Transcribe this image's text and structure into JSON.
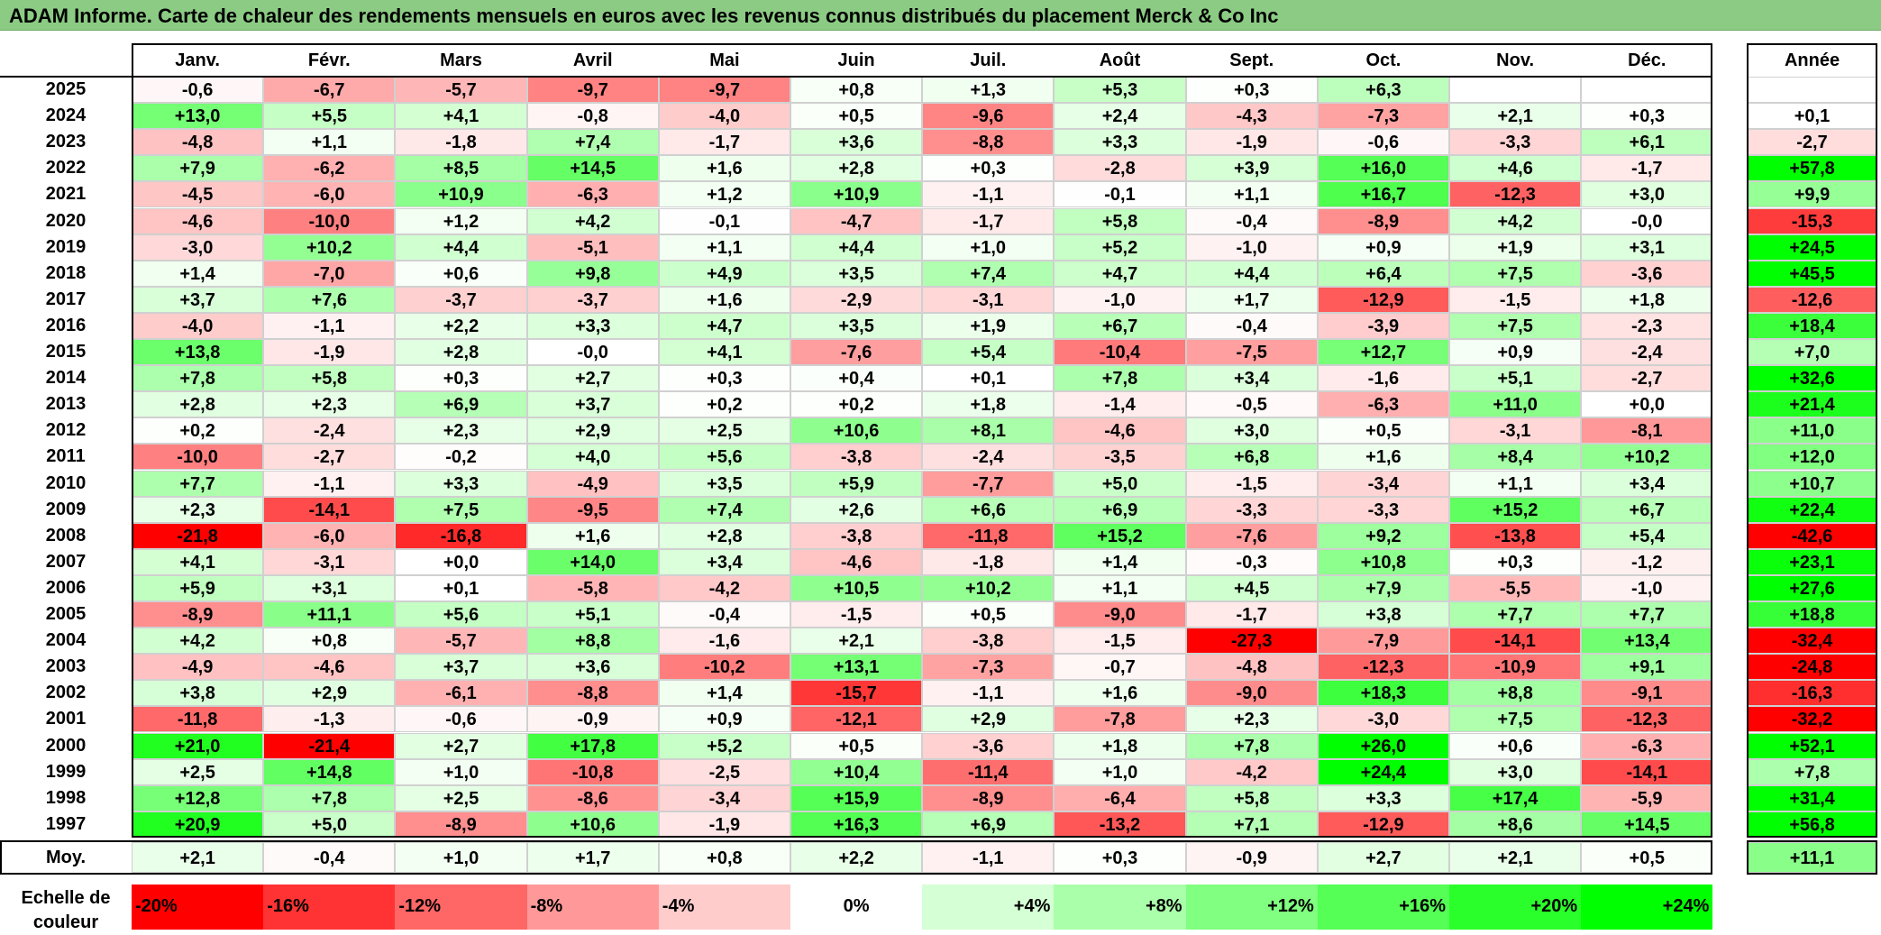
{
  "title": "ADAM Informe. Carte de chaleur des rendements mensuels en euros avec les revenus connus distribués du placement Merck & Co Inc",
  "chart_data": {
    "type": "heatmap",
    "months": [
      "Janv.",
      "Févr.",
      "Mars",
      "Avril",
      "Mai",
      "Juin",
      "Juil.",
      "Août",
      "Sept.",
      "Oct.",
      "Nov.",
      "Déc."
    ],
    "year_header": "Année",
    "rows": [
      {
        "year": "2025",
        "values": [
          "-0,6",
          "-6,7",
          "-5,7",
          "-9,7",
          "-9,7",
          "+0,8",
          "+1,3",
          "+5,3",
          "+0,3",
          "+6,3",
          "",
          ""
        ],
        "annual": ""
      },
      {
        "year": "2024",
        "values": [
          "+13,0",
          "+5,5",
          "+4,1",
          "-0,8",
          "-4,0",
          "+0,5",
          "-9,6",
          "+2,4",
          "-4,3",
          "-7,3",
          "+2,1",
          "+0,3"
        ],
        "annual": "+0,1"
      },
      {
        "year": "2023",
        "values": [
          "-4,8",
          "+1,1",
          "-1,8",
          "+7,4",
          "-1,7",
          "+3,6",
          "-8,8",
          "+3,3",
          "-1,9",
          "-0,6",
          "-3,3",
          "+6,1"
        ],
        "annual": "-2,7"
      },
      {
        "year": "2022",
        "values": [
          "+7,9",
          "-6,2",
          "+8,5",
          "+14,5",
          "+1,6",
          "+2,8",
          "+0,3",
          "-2,8",
          "+3,9",
          "+16,0",
          "+4,6",
          "-1,7"
        ],
        "annual": "+57,8"
      },
      {
        "year": "2021",
        "values": [
          "-4,5",
          "-6,0",
          "+10,9",
          "-6,3",
          "+1,2",
          "+10,9",
          "-1,1",
          "-0,1",
          "+1,1",
          "+16,7",
          "-12,3",
          "+3,0"
        ],
        "annual": "+9,9"
      },
      {
        "year": "2020",
        "values": [
          "-4,6",
          "-10,0",
          "+1,2",
          "+4,2",
          "-0,1",
          "-4,7",
          "-1,7",
          "+5,8",
          "-0,4",
          "-8,9",
          "+4,2",
          "-0,0"
        ],
        "annual": "-15,3"
      },
      {
        "year": "2019",
        "values": [
          "-3,0",
          "+10,2",
          "+4,4",
          "-5,1",
          "+1,1",
          "+4,4",
          "+1,0",
          "+5,2",
          "-1,0",
          "+0,9",
          "+1,9",
          "+3,1"
        ],
        "annual": "+24,5"
      },
      {
        "year": "2018",
        "values": [
          "+1,4",
          "-7,0",
          "+0,6",
          "+9,8",
          "+4,9",
          "+3,5",
          "+7,4",
          "+4,7",
          "+4,4",
          "+6,4",
          "+7,5",
          "-3,6"
        ],
        "annual": "+45,5"
      },
      {
        "year": "2017",
        "values": [
          "+3,7",
          "+7,6",
          "-3,7",
          "-3,7",
          "+1,6",
          "-2,9",
          "-3,1",
          "-1,0",
          "+1,7",
          "-12,9",
          "-1,5",
          "+1,8"
        ],
        "annual": "-12,6"
      },
      {
        "year": "2016",
        "values": [
          "-4,0",
          "-1,1",
          "+2,2",
          "+3,3",
          "+4,7",
          "+3,5",
          "+1,9",
          "+6,7",
          "-0,4",
          "-3,9",
          "+7,5",
          "-2,3"
        ],
        "annual": "+18,4"
      },
      {
        "year": "2015",
        "values": [
          "+13,8",
          "-1,9",
          "+2,8",
          "-0,0",
          "+4,1",
          "-7,6",
          "+5,4",
          "-10,4",
          "-7,5",
          "+12,7",
          "+0,9",
          "-2,4"
        ],
        "annual": "+7,0"
      },
      {
        "year": "2014",
        "values": [
          "+7,8",
          "+5,8",
          "+0,3",
          "+2,7",
          "+0,3",
          "+0,4",
          "+0,1",
          "+7,8",
          "+3,4",
          "-1,6",
          "+5,1",
          "-2,7"
        ],
        "annual": "+32,6"
      },
      {
        "year": "2013",
        "values": [
          "+2,8",
          "+2,3",
          "+6,9",
          "+3,7",
          "+0,2",
          "+0,2",
          "+1,8",
          "-1,4",
          "-0,5",
          "-6,3",
          "+11,0",
          "+0,0"
        ],
        "annual": "+21,4"
      },
      {
        "year": "2012",
        "values": [
          "+0,2",
          "-2,4",
          "+2,3",
          "+2,9",
          "+2,5",
          "+10,6",
          "+8,1",
          "-4,6",
          "+3,0",
          "+0,5",
          "-3,1",
          "-8,1"
        ],
        "annual": "+11,0"
      },
      {
        "year": "2011",
        "values": [
          "-10,0",
          "-2,7",
          "-0,2",
          "+4,0",
          "+5,6",
          "-3,8",
          "-2,4",
          "-3,5",
          "+6,8",
          "+1,6",
          "+8,4",
          "+10,2"
        ],
        "annual": "+12,0"
      },
      {
        "year": "2010",
        "values": [
          "+7,7",
          "-1,1",
          "+3,3",
          "-4,9",
          "+3,5",
          "+5,9",
          "-7,7",
          "+5,0",
          "-1,5",
          "-3,4",
          "+1,1",
          "+3,4"
        ],
        "annual": "+10,7"
      },
      {
        "year": "2009",
        "values": [
          "+2,3",
          "-14,1",
          "+7,5",
          "-9,5",
          "+7,4",
          "+2,6",
          "+6,6",
          "+6,9",
          "-3,3",
          "-3,3",
          "+15,2",
          "+6,7"
        ],
        "annual": "+22,4"
      },
      {
        "year": "2008",
        "values": [
          "-21,8",
          "-6,0",
          "-16,8",
          "+1,6",
          "+2,8",
          "-3,8",
          "-11,8",
          "+15,2",
          "-7,6",
          "+9,2",
          "-13,8",
          "+5,4"
        ],
        "annual": "-42,6"
      },
      {
        "year": "2007",
        "values": [
          "+4,1",
          "-3,1",
          "+0,0",
          "+14,0",
          "+3,4",
          "-4,6",
          "-1,8",
          "+1,4",
          "-0,3",
          "+10,8",
          "+0,3",
          "-1,2"
        ],
        "annual": "+23,1"
      },
      {
        "year": "2006",
        "values": [
          "+5,9",
          "+3,1",
          "+0,1",
          "-5,8",
          "-4,2",
          "+10,5",
          "+10,2",
          "+1,1",
          "+4,5",
          "+7,9",
          "-5,5",
          "-1,0"
        ],
        "annual": "+27,6"
      },
      {
        "year": "2005",
        "values": [
          "-8,9",
          "+11,1",
          "+5,6",
          "+5,1",
          "-0,4",
          "-1,5",
          "+0,5",
          "-9,0",
          "-1,7",
          "+3,8",
          "+7,7",
          "+7,7"
        ],
        "annual": "+18,8"
      },
      {
        "year": "2004",
        "values": [
          "+4,2",
          "+0,8",
          "-5,7",
          "+8,8",
          "-1,6",
          "+2,1",
          "-3,8",
          "-1,5",
          "-27,3",
          "-7,9",
          "-14,1",
          "+13,4"
        ],
        "annual": "-32,4"
      },
      {
        "year": "2003",
        "values": [
          "-4,9",
          "-4,6",
          "+3,7",
          "+3,6",
          "-10,2",
          "+13,1",
          "-7,3",
          "-0,7",
          "-4,8",
          "-12,3",
          "-10,9",
          "+9,1"
        ],
        "annual": "-24,8"
      },
      {
        "year": "2002",
        "values": [
          "+3,8",
          "+2,9",
          "-6,1",
          "-8,8",
          "+1,4",
          "-15,7",
          "-1,1",
          "+1,6",
          "-9,0",
          "+18,3",
          "+8,8",
          "-9,1"
        ],
        "annual": "-16,3"
      },
      {
        "year": "2001",
        "values": [
          "-11,8",
          "-1,3",
          "-0,6",
          "-0,9",
          "+0,9",
          "-12,1",
          "+2,9",
          "-7,8",
          "+2,3",
          "-3,0",
          "+7,5",
          "-12,3"
        ],
        "annual": "-32,2"
      },
      {
        "year": "2000",
        "values": [
          "+21,0",
          "-21,4",
          "+2,7",
          "+17,8",
          "+5,2",
          "+0,5",
          "-3,6",
          "+1,8",
          "+7,8",
          "+26,0",
          "+0,6",
          "-6,3"
        ],
        "annual": "+52,1"
      },
      {
        "year": "1999",
        "values": [
          "+2,5",
          "+14,8",
          "+1,0",
          "-10,8",
          "-2,5",
          "+10,4",
          "-11,4",
          "+1,0",
          "-4,2",
          "+24,4",
          "+3,0",
          "-14,1"
        ],
        "annual": "+7,8"
      },
      {
        "year": "1998",
        "values": [
          "+12,8",
          "+7,8",
          "+2,5",
          "-8,6",
          "-3,4",
          "+15,9",
          "-8,9",
          "-6,4",
          "+5,8",
          "+3,3",
          "+17,4",
          "-5,9"
        ],
        "annual": "+31,4"
      },
      {
        "year": "1997",
        "values": [
          "+20,9",
          "+5,0",
          "-8,9",
          "+10,6",
          "-1,9",
          "+16,3",
          "+6,9",
          "-13,2",
          "+7,1",
          "-12,9",
          "+8,6",
          "+14,5"
        ],
        "annual": "+56,8"
      }
    ],
    "average": {
      "label": "Moy.",
      "values": [
        "+2,1",
        "-0,4",
        "+1,0",
        "+1,7",
        "+0,8",
        "+2,2",
        "-1,1",
        "+0,3",
        "-0,9",
        "+2,7",
        "+2,1",
        "+0,5"
      ],
      "annual": "+11,1"
    },
    "scale": {
      "label": "Echelle de couleur",
      "steps": [
        "-20%",
        "-16%",
        "-12%",
        "-8%",
        "-4%",
        "0%",
        "+4%",
        "+8%",
        "+12%",
        "+16%",
        "+20%",
        "+24%"
      ],
      "values": [
        -20,
        -16,
        -12,
        -8,
        -4,
        0,
        4,
        8,
        12,
        16,
        20,
        24
      ]
    },
    "colors": {
      "negative": "#ff0000",
      "neutral": "#ffffff",
      "positive": "#00ff00",
      "title_bg": "#8ccb84"
    }
  }
}
